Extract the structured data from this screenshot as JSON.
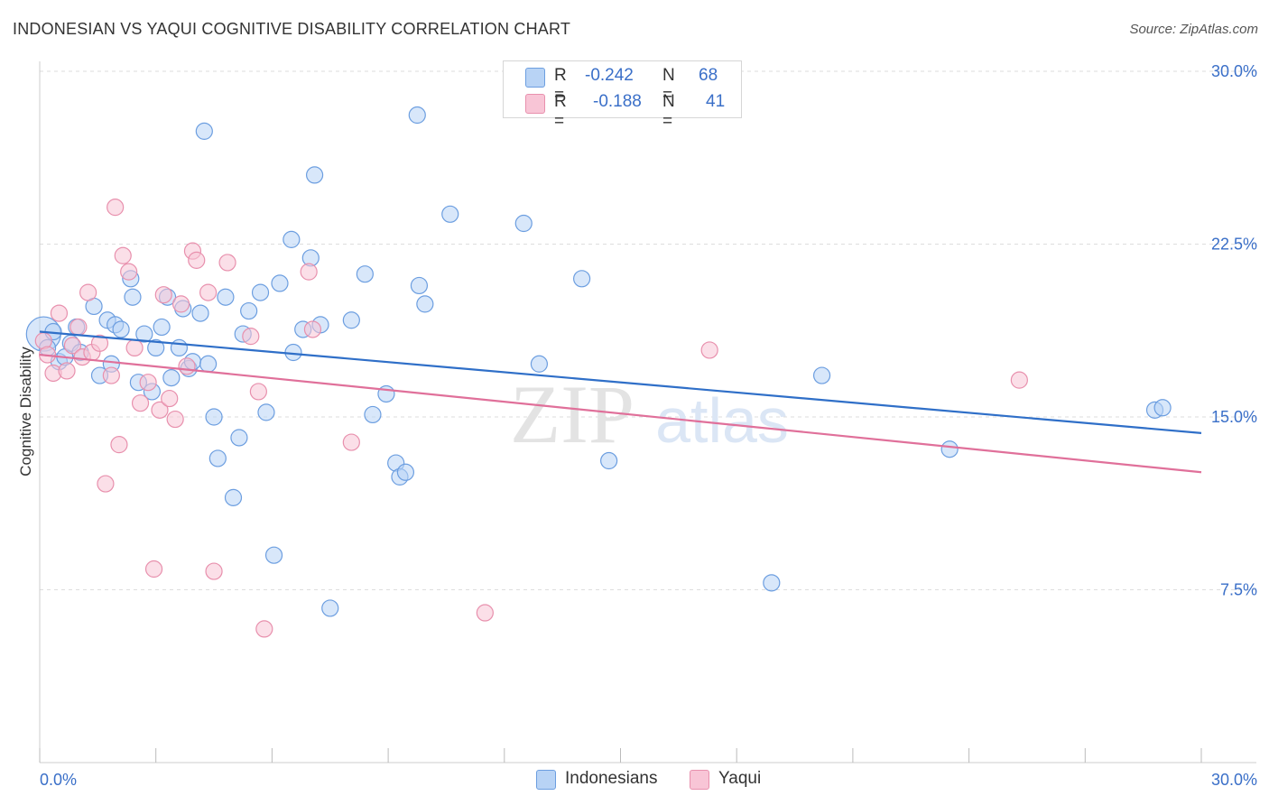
{
  "title": "INDONESIAN VS YAQUI COGNITIVE DISABILITY CORRELATION CHART",
  "source": "Source: ZipAtlas.com",
  "watermark": {
    "zip": "ZIP",
    "atlas": "atlas"
  },
  "colors": {
    "indonesians_fill": "#b8d3f5",
    "indonesians_stroke": "#6c9ee0",
    "indonesians_line": "#2f6fc8",
    "yaqui_fill": "#f8c5d6",
    "yaqui_stroke": "#e890ad",
    "yaqui_line": "#e0709a",
    "tick_text": "#3a6fc8",
    "grid": "#dddddd"
  },
  "legend": {
    "rows": [
      {
        "r_label": "R =",
        "r_value": "-0.242",
        "n_label": "N =",
        "n_value": "68"
      },
      {
        "r_label": "R =",
        "r_value": "-0.188",
        "n_label": "N =",
        "n_value": "41"
      }
    ]
  },
  "bottom_legend": {
    "indonesians": "Indonesians",
    "yaqui": "Yaqui"
  },
  "chart_data": {
    "type": "scatter",
    "title": "INDONESIAN VS YAQUI COGNITIVE DISABILITY CORRELATION CHART",
    "xlabel": "",
    "ylabel": "Cognitive Disability",
    "xlim": [
      0,
      30
    ],
    "ylim": [
      0,
      30
    ],
    "x_tick_labels": [
      "0.0%",
      "30.0%"
    ],
    "y_ticks": [
      7.5,
      15.0,
      22.5,
      30.0
    ],
    "y_tick_labels": [
      "7.5%",
      "15.0%",
      "22.5%",
      "30.0%"
    ],
    "grid": true,
    "legend_position": "top-center",
    "series": [
      {
        "name": "Indonesians",
        "points": [
          [
            0.1,
            18.6
          ],
          [
            0.2,
            18.0
          ],
          [
            0.35,
            18.7
          ],
          [
            0.5,
            17.4
          ],
          [
            0.65,
            17.6
          ],
          [
            0.8,
            18.2
          ],
          [
            0.95,
            18.9
          ],
          [
            1.05,
            17.8
          ],
          [
            1.4,
            19.8
          ],
          [
            1.55,
            16.8
          ],
          [
            1.75,
            19.2
          ],
          [
            1.85,
            17.3
          ],
          [
            1.95,
            19.0
          ],
          [
            2.1,
            18.8
          ],
          [
            2.35,
            21.0
          ],
          [
            2.4,
            20.2
          ],
          [
            2.55,
            16.5
          ],
          [
            2.7,
            18.6
          ],
          [
            2.9,
            16.1
          ],
          [
            3.0,
            18.0
          ],
          [
            3.15,
            18.9
          ],
          [
            3.3,
            20.2
          ],
          [
            3.4,
            16.7
          ],
          [
            3.6,
            18.0
          ],
          [
            3.7,
            19.7
          ],
          [
            3.85,
            17.1
          ],
          [
            3.95,
            17.4
          ],
          [
            4.15,
            19.5
          ],
          [
            4.25,
            27.4
          ],
          [
            4.35,
            17.3
          ],
          [
            4.5,
            15.0
          ],
          [
            4.6,
            13.2
          ],
          [
            4.8,
            20.2
          ],
          [
            5.0,
            11.5
          ],
          [
            5.15,
            14.1
          ],
          [
            5.25,
            18.6
          ],
          [
            5.4,
            19.6
          ],
          [
            5.7,
            20.4
          ],
          [
            5.85,
            15.2
          ],
          [
            6.05,
            9.0
          ],
          [
            6.2,
            20.8
          ],
          [
            6.5,
            22.7
          ],
          [
            6.55,
            17.8
          ],
          [
            6.8,
            18.8
          ],
          [
            7.0,
            21.9
          ],
          [
            7.1,
            25.5
          ],
          [
            7.25,
            19.0
          ],
          [
            7.5,
            6.7
          ],
          [
            8.05,
            19.2
          ],
          [
            8.4,
            21.2
          ],
          [
            8.6,
            15.1
          ],
          [
            8.95,
            16.0
          ],
          [
            9.2,
            13.0
          ],
          [
            9.3,
            12.4
          ],
          [
            9.45,
            12.6
          ],
          [
            9.75,
            28.1
          ],
          [
            9.8,
            20.7
          ],
          [
            9.95,
            19.9
          ],
          [
            10.6,
            23.8
          ],
          [
            12.5,
            23.4
          ],
          [
            12.9,
            17.3
          ],
          [
            14.0,
            21.0
          ],
          [
            14.7,
            13.1
          ],
          [
            18.9,
            7.8
          ],
          [
            20.2,
            16.8
          ],
          [
            23.5,
            13.6
          ],
          [
            28.8,
            15.3
          ],
          [
            29.0,
            15.4
          ]
        ],
        "sizes": [
          38,
          18,
          18,
          18,
          18,
          18,
          18,
          18,
          18,
          18,
          18,
          18,
          18,
          18,
          18,
          18,
          18,
          18,
          18,
          18,
          18,
          18,
          18,
          18,
          18,
          18,
          18,
          18,
          18,
          18,
          18,
          18,
          18,
          18,
          18,
          18,
          18,
          18,
          18,
          18,
          18,
          18,
          18,
          18,
          18,
          18,
          18,
          18,
          18,
          18,
          18,
          18,
          18,
          18,
          18,
          18,
          18,
          18,
          18,
          18,
          18,
          18,
          18,
          18,
          18,
          18,
          18,
          18
        ],
        "trend": {
          "x": [
            0,
            30
          ],
          "y": [
            18.7,
            14.3
          ]
        }
      },
      {
        "name": "Yaqui",
        "points": [
          [
            0.1,
            18.3
          ],
          [
            0.2,
            17.7
          ],
          [
            0.35,
            16.9
          ],
          [
            0.5,
            19.5
          ],
          [
            0.7,
            17.0
          ],
          [
            0.85,
            18.1
          ],
          [
            1.0,
            18.9
          ],
          [
            1.1,
            17.6
          ],
          [
            1.25,
            20.4
          ],
          [
            1.35,
            17.8
          ],
          [
            1.55,
            18.2
          ],
          [
            1.7,
            12.1
          ],
          [
            1.85,
            16.8
          ],
          [
            1.95,
            24.1
          ],
          [
            2.05,
            13.8
          ],
          [
            2.15,
            22.0
          ],
          [
            2.3,
            21.3
          ],
          [
            2.45,
            18.0
          ],
          [
            2.6,
            15.6
          ],
          [
            2.8,
            16.5
          ],
          [
            2.95,
            8.4
          ],
          [
            3.1,
            15.3
          ],
          [
            3.2,
            20.3
          ],
          [
            3.35,
            15.8
          ],
          [
            3.5,
            14.9
          ],
          [
            3.65,
            19.9
          ],
          [
            3.8,
            17.2
          ],
          [
            3.95,
            22.2
          ],
          [
            4.05,
            21.8
          ],
          [
            4.35,
            20.4
          ],
          [
            4.5,
            8.3
          ],
          [
            4.85,
            21.7
          ],
          [
            5.45,
            18.5
          ],
          [
            5.65,
            16.1
          ],
          [
            5.8,
            5.8
          ],
          [
            6.95,
            21.3
          ],
          [
            7.05,
            18.8
          ],
          [
            8.05,
            13.9
          ],
          [
            11.5,
            6.5
          ],
          [
            17.3,
            17.9
          ],
          [
            25.3,
            16.6
          ]
        ],
        "sizes": [
          18,
          18,
          18,
          18,
          18,
          18,
          18,
          18,
          18,
          18,
          18,
          18,
          18,
          18,
          18,
          18,
          18,
          18,
          18,
          18,
          18,
          18,
          18,
          18,
          18,
          18,
          18,
          18,
          18,
          18,
          18,
          18,
          18,
          18,
          18,
          18,
          18,
          18,
          18,
          18,
          18
        ],
        "trend": {
          "x": [
            0,
            30
          ],
          "y": [
            17.7,
            12.6
          ]
        }
      }
    ]
  }
}
